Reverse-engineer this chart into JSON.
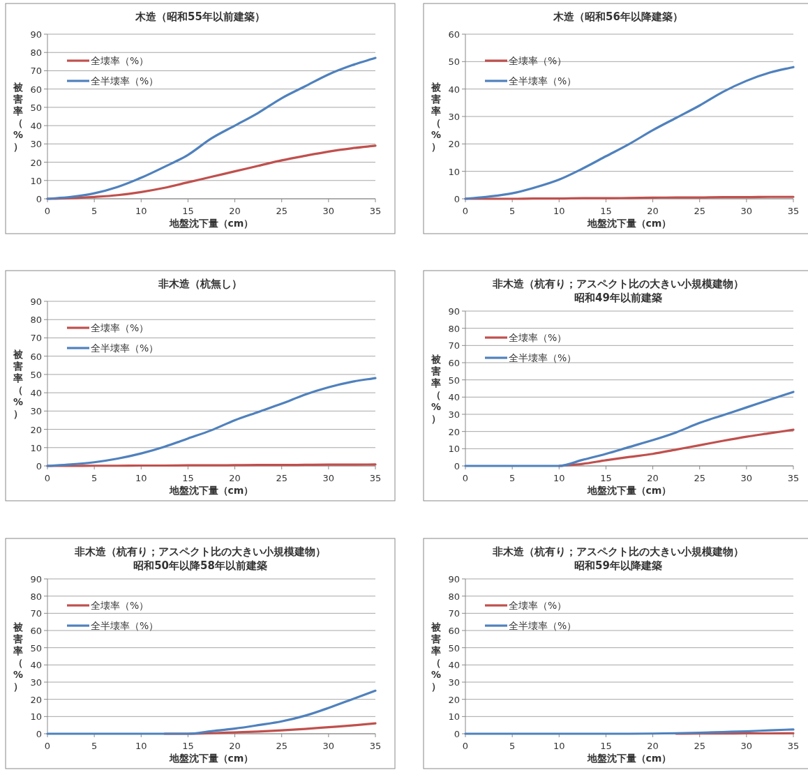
{
  "chart_data": [
    {
      "type": "line",
      "title": "木造（昭和55年以前建築）",
      "xlabel": "地盤沈下量（cm）",
      "ylabel": "被害率（%）",
      "x": [
        0,
        2.5,
        5,
        7.5,
        10,
        12.5,
        15,
        17.5,
        20,
        22.5,
        25,
        27.5,
        30,
        32.5,
        35
      ],
      "xlim": [
        0,
        35
      ],
      "xticks": [
        0,
        5,
        10,
        15,
        20,
        25,
        30,
        35
      ],
      "ylim": [
        0,
        90
      ],
      "yticks": [
        0,
        10,
        20,
        30,
        40,
        50,
        60,
        70,
        80,
        90
      ],
      "grid": "y",
      "legend": "top left",
      "series": [
        {
          "name": "全壊率（%）",
          "color": "#c0504d",
          "values": [
            0,
            0.3,
            1,
            2,
            3.7,
            6,
            9,
            12,
            15,
            18,
            21,
            23.5,
            25.8,
            27.6,
            29
          ]
        },
        {
          "name": "全半壊率（%）",
          "color": "#4f81bd",
          "values": [
            0,
            1,
            3,
            6.5,
            11.5,
            17.5,
            24,
            33,
            40,
            47,
            55,
            61.5,
            68,
            73,
            77
          ]
        }
      ]
    },
    {
      "type": "line",
      "title": "木造（昭和56年以降建築）",
      "xlabel": "地盤沈下量（cm）",
      "ylabel": "被害率（%）",
      "x": [
        0,
        2.5,
        5,
        7.5,
        10,
        12.5,
        15,
        17.5,
        20,
        22.5,
        25,
        27.5,
        30,
        32.5,
        35
      ],
      "xlim": [
        0,
        35
      ],
      "xticks": [
        0,
        5,
        10,
        15,
        20,
        25,
        30,
        35
      ],
      "ylim": [
        0,
        60
      ],
      "yticks": [
        0,
        10,
        20,
        30,
        40,
        50,
        60
      ],
      "grid": "y",
      "legend": "top left",
      "series": [
        {
          "name": "全壊率（%）",
          "color": "#c0504d",
          "values": [
            0,
            0,
            0,
            0.1,
            0.1,
            0.2,
            0.2,
            0.3,
            0.4,
            0.5,
            0.5,
            0.6,
            0.6,
            0.7,
            0.7
          ]
        },
        {
          "name": "全半壊率（%）",
          "color": "#4f81bd",
          "values": [
            0,
            0.8,
            2,
            4.2,
            7,
            11,
            15.5,
            20,
            25,
            29.5,
            34,
            39,
            43,
            46,
            48
          ]
        }
      ]
    },
    {
      "type": "line",
      "title": "非木造（杭無し）",
      "xlabel": "地盤沈下量（cm）",
      "ylabel": "被害率（%）",
      "x": [
        0,
        2.5,
        5,
        7.5,
        10,
        12.5,
        15,
        17.5,
        20,
        22.5,
        25,
        27.5,
        30,
        32.5,
        35
      ],
      "xlim": [
        0,
        35
      ],
      "xticks": [
        0,
        5,
        10,
        15,
        20,
        25,
        30,
        35
      ],
      "ylim": [
        0,
        90
      ],
      "yticks": [
        0,
        10,
        20,
        30,
        40,
        50,
        60,
        70,
        80,
        90
      ],
      "grid": "y",
      "legend": "top left",
      "series": [
        {
          "name": "全壊率（%）",
          "color": "#c0504d",
          "values": [
            0,
            0,
            0.1,
            0.1,
            0.2,
            0.2,
            0.3,
            0.3,
            0.4,
            0.5,
            0.5,
            0.6,
            0.7,
            0.7,
            0.8
          ]
        },
        {
          "name": "全半壊率（%）",
          "color": "#4f81bd",
          "values": [
            0,
            0.8,
            2,
            4,
            6.8,
            10.5,
            15,
            19.5,
            25,
            29.5,
            34,
            39,
            43,
            46,
            48
          ]
        }
      ]
    },
    {
      "type": "line",
      "title": "非木造（杭有り；アスペクト比の大きい小規模建物）",
      "subtitle": "昭和49年以前建築",
      "xlabel": "地盤沈下量（cm）",
      "ylabel": "被害率（%）",
      "x": [
        0,
        2.5,
        5,
        7.5,
        10,
        12.5,
        15,
        17.5,
        20,
        22.5,
        25,
        27.5,
        30,
        32.5,
        35
      ],
      "xlim": [
        0,
        35
      ],
      "xticks": [
        0,
        5,
        10,
        15,
        20,
        25,
        30,
        35
      ],
      "ylim": [
        0,
        90
      ],
      "yticks": [
        0,
        10,
        20,
        30,
        40,
        50,
        60,
        70,
        80,
        90
      ],
      "grid": "y",
      "legend": "top left",
      "series": [
        {
          "name": "全壊率（%）",
          "color": "#c0504d",
          "values": [
            null,
            null,
            null,
            null,
            0,
            1.2,
            3.3,
            5.2,
            7,
            9.5,
            12,
            14.6,
            17,
            19,
            21
          ]
        },
        {
          "name": "全半壊率（%）",
          "color": "#4f81bd",
          "values": [
            0,
            0,
            0,
            0,
            0,
            3.5,
            7,
            11,
            15,
            19.5,
            25,
            29.5,
            34,
            38.5,
            43
          ]
        }
      ]
    },
    {
      "type": "line",
      "title": "非木造（杭有り；アスペクト比の大きい小規模建物）",
      "subtitle": "昭和50年以降58年以前建築",
      "xlabel": "地盤沈下量（cm）",
      "ylabel": "被害率（%）",
      "x": [
        0,
        2.5,
        5,
        7.5,
        10,
        12.5,
        15,
        17.5,
        20,
        22.5,
        25,
        27.5,
        30,
        32.5,
        35
      ],
      "xlim": [
        0,
        35
      ],
      "xticks": [
        0,
        5,
        10,
        15,
        20,
        25,
        30,
        35
      ],
      "ylim": [
        0,
        90
      ],
      "yticks": [
        0,
        10,
        20,
        30,
        40,
        50,
        60,
        70,
        80,
        90
      ],
      "grid": "y",
      "legend": "top left",
      "series": [
        {
          "name": "全壊率（%）",
          "color": "#c0504d",
          "values": [
            null,
            null,
            null,
            null,
            null,
            0,
            0,
            0.3,
            0.8,
            1.3,
            2,
            2.8,
            3.8,
            4.8,
            6
          ]
        },
        {
          "name": "全半壊率（%）",
          "color": "#4f81bd",
          "values": [
            0,
            0,
            0,
            0,
            0,
            0,
            0,
            1.5,
            3,
            5,
            7.2,
            10.5,
            15,
            20,
            25
          ]
        }
      ]
    },
    {
      "type": "line",
      "title": "非木造（杭有り；アスペクト比の大きい小規模建物）",
      "subtitle": "昭和59年以降建築",
      "xlabel": "地盤沈下量（cm）",
      "ylabel": "被害率（%）",
      "x": [
        0,
        2.5,
        5,
        7.5,
        10,
        12.5,
        15,
        17.5,
        20,
        22.5,
        25,
        27.5,
        30,
        32.5,
        35
      ],
      "xlim": [
        0,
        35
      ],
      "xticks": [
        0,
        5,
        10,
        15,
        20,
        25,
        30,
        35
      ],
      "ylim": [
        0,
        90
      ],
      "yticks": [
        0,
        10,
        20,
        30,
        40,
        50,
        60,
        70,
        80,
        90
      ],
      "grid": "y",
      "legend": "top left",
      "series": [
        {
          "name": "全壊率（%）",
          "color": "#c0504d",
          "values": [
            null,
            null,
            null,
            null,
            null,
            null,
            null,
            null,
            null,
            0,
            0.1,
            0.1,
            0.2,
            0.2,
            0.3
          ]
        },
        {
          "name": "全半壊率（%）",
          "color": "#4f81bd",
          "values": [
            0,
            0,
            0,
            0,
            0,
            0,
            0,
            0,
            0.1,
            0.3,
            0.6,
            1,
            1.4,
            2,
            2.5
          ]
        }
      ]
    }
  ]
}
